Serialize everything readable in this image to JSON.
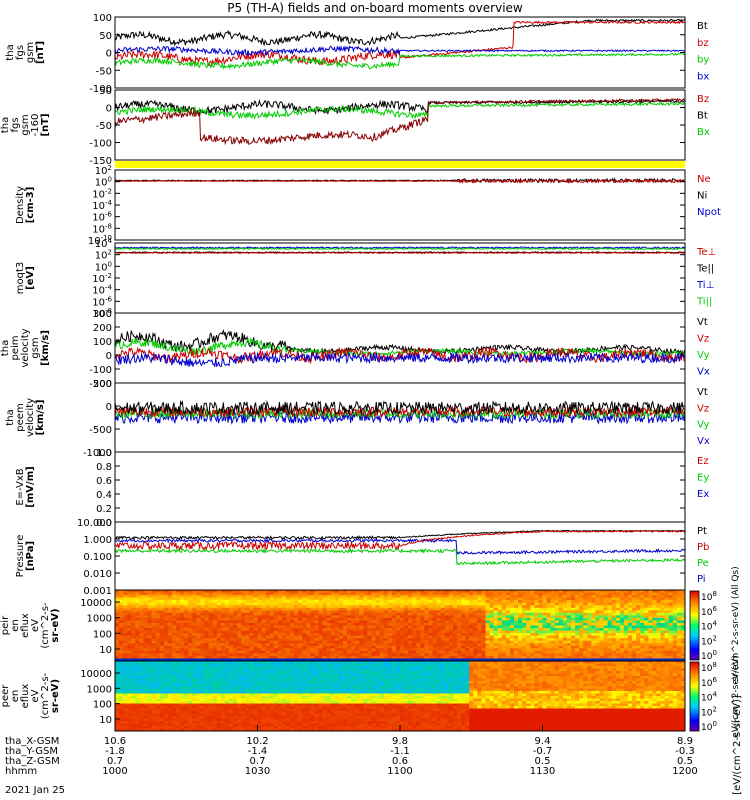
{
  "title": "P5 (TH-A) fields and on-board moments overview",
  "date_label": "2021 Jan 25",
  "chart_data": {
    "type": "line",
    "x_axis": {
      "rows": [
        {
          "label": "tha_X-GSM",
          "values": [
            "10.6",
            "10.2",
            "9.8",
            "9.4",
            "8.9"
          ]
        },
        {
          "label": "tha_Y-GSM",
          "values": [
            "-1.8",
            "-1.4",
            "-1.1",
            "-0.7",
            "-0.3"
          ]
        },
        {
          "label": "tha_Z-GSM",
          "values": [
            "0.7",
            "0.7",
            "0.6",
            "0.5",
            "0.5"
          ]
        },
        {
          "label": "hhmm",
          "values": [
            "1000",
            "1030",
            "1100",
            "1130",
            "1200"
          ]
        }
      ]
    },
    "panels": [
      {
        "ylabel": [
          "tha",
          "fgs",
          "gsm",
          "[nT]"
        ],
        "ticks": [
          "100",
          "50",
          "0",
          "-50",
          "-100"
        ],
        "ylim": [
          -100,
          100
        ],
        "scale": "linear",
        "legend": [
          {
            "name": "Bt",
            "color": "#000000"
          },
          {
            "name": "bz",
            "color": "#cc0000"
          },
          {
            "name": "by",
            "color": "#00cc00"
          },
          {
            "name": "bx",
            "color": "#0000cc"
          }
        ]
      },
      {
        "ylabel": [
          "tha",
          "fgs",
          "gsm",
          "-160",
          "[nT]"
        ],
        "ticks": [
          "50",
          "0",
          "-50",
          "-100",
          "-150"
        ],
        "ylim": [
          -170,
          50
        ],
        "scale": "linear",
        "legend": [
          {
            "name": "Bz",
            "color": "#cc0000"
          },
          {
            "name": "Bt",
            "color": "#000000"
          },
          {
            "name": "Bx",
            "color": "#00cc00"
          }
        ]
      },
      {
        "ylabel": [
          "Density",
          "[cm-3]"
        ],
        "ticks": [
          "10",
          "10",
          "10",
          "10",
          "10",
          "10",
          "10"
        ],
        "tick_exponents": [
          "2",
          "0",
          "-2",
          "-4",
          "-6",
          "-8",
          "-10"
        ],
        "ylim": [
          1e-10,
          100
        ],
        "scale": "log",
        "legend": [
          {
            "name": "Ne",
            "color": "#cc0000"
          },
          {
            "name": "Ni",
            "color": "#000000"
          },
          {
            "name": "Npot",
            "color": "#0000cc"
          }
        ]
      },
      {
        "ylabel": [
          "moqt3",
          "[eV]"
        ],
        "ticks": [
          "10",
          "10",
          "10",
          "10",
          "10",
          "10",
          "10"
        ],
        "tick_exponents": [
          "4",
          "2",
          "0",
          "-2",
          "-4",
          "-6",
          "-8"
        ],
        "ylim": [
          1e-08,
          10000.0
        ],
        "scale": "log",
        "legend": [
          {
            "name": "Te⊥",
            "color": "#cc0000"
          },
          {
            "name": "Te||",
            "color": "#000000"
          },
          {
            "name": "Ti⊥",
            "color": "#0000cc"
          },
          {
            "name": "Ti||",
            "color": "#00cc00"
          }
        ]
      },
      {
        "ylabel": [
          "tha",
          "peim",
          "velocity",
          "gsm",
          "[km/s]"
        ],
        "ticks": [
          "300",
          "200",
          "100",
          "0",
          "-100",
          "-200"
        ],
        "ylim": [
          -200,
          300
        ],
        "scale": "linear",
        "legend": [
          {
            "name": "Vt",
            "color": "#000000"
          },
          {
            "name": "Vz",
            "color": "#cc0000"
          },
          {
            "name": "Vy",
            "color": "#00cc00"
          },
          {
            "name": "Vx",
            "color": "#0000cc"
          }
        ]
      },
      {
        "ylabel": [
          "tha",
          "peem",
          "velocity",
          "[km/s]"
        ],
        "ticks": [
          "500",
          "0",
          "-500",
          "-1000"
        ],
        "ylim": [
          -1000,
          800
        ],
        "scale": "linear",
        "legend": [
          {
            "name": "Vt",
            "color": "#000000"
          },
          {
            "name": "Vz",
            "color": "#cc0000"
          },
          {
            "name": "Vy",
            "color": "#00cc00"
          },
          {
            "name": "Vx",
            "color": "#0000cc"
          }
        ]
      },
      {
        "ylabel": [
          "E=-VxB",
          "[mV/m]"
        ],
        "ticks": [
          "1.0",
          "0.8",
          "0.6",
          "0.4",
          "0.2",
          "0.0"
        ],
        "ylim": [
          0,
          1
        ],
        "scale": "linear",
        "legend": [
          {
            "name": "Ez",
            "color": "#cc0000"
          },
          {
            "name": "Ey",
            "color": "#00cc00"
          },
          {
            "name": "Ex",
            "color": "#0000cc"
          }
        ]
      },
      {
        "ylabel": [
          "Pressure",
          "[nPa]"
        ],
        "ticks": [
          "10.000",
          "1.000",
          "0.100",
          "0.010",
          "0.001"
        ],
        "ylim": [
          0.001,
          10
        ],
        "scale": "log",
        "legend": [
          {
            "name": "Pt",
            "color": "#000000"
          },
          {
            "name": "Pb",
            "color": "#cc0000"
          },
          {
            "name": "Pe",
            "color": "#00cc00"
          },
          {
            "name": "Pi",
            "color": "#0000cc"
          }
        ]
      },
      {
        "type": "heatmap",
        "ylabel": [
          "tha",
          "peir",
          "en",
          "eflux",
          "eV",
          "(cm^2-s-",
          "sr-eV)"
        ],
        "ticks": [
          "10000",
          "1000",
          "100",
          "10"
        ],
        "scale": "log"
      },
      {
        "type": "heatmap",
        "ylabel": [
          "tha",
          "peer",
          "en",
          "eflux",
          "eV",
          "(cm^2-s-",
          "sr-eV)"
        ],
        "ticks": [
          "10000",
          "1000",
          "100",
          "10"
        ],
        "scale": "log"
      }
    ],
    "colorbars": [
      {
        "exponents": [
          "8",
          "6",
          "4",
          "2",
          "0"
        ],
        "label": "eV/(cm^2-s-sr-eV) (All Qs)"
      },
      {
        "exponents": [
          "8",
          "6",
          "4",
          "2",
          "0"
        ],
        "label": "eV/(cm^2-s-sr-eV)"
      }
    ],
    "colorbar_title": "[eV/(cm^2-s-sr-eV)]"
  }
}
